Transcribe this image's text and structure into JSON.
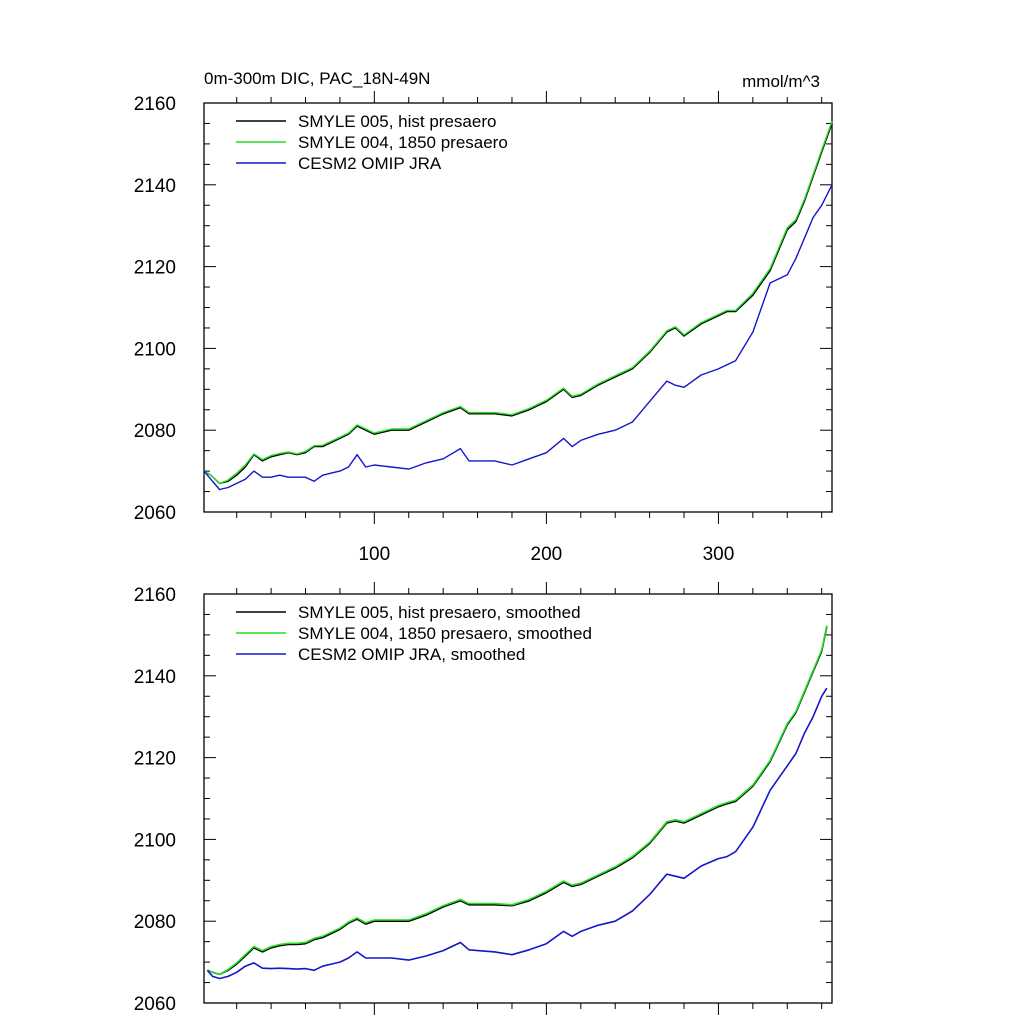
{
  "colors": {
    "black": "#000000",
    "green": "#22dd22",
    "blue": "#1515cc"
  },
  "chart_data": [
    {
      "type": "line",
      "title": "0m-300m DIC, PAC_18N-49N",
      "units": "mmol/m^3",
      "xlim": [
        1,
        366
      ],
      "ylim": [
        2060,
        2160
      ],
      "x_ticks": [
        100,
        200,
        300
      ],
      "y_ticks": [
        2060,
        2080,
        2100,
        2120,
        2140,
        2160
      ],
      "legend_position": "top-left",
      "series": [
        {
          "name": "SMYLE 005, hist presaero",
          "color": "#000000",
          "x": [
            1,
            5,
            10,
            15,
            20,
            25,
            30,
            35,
            40,
            45,
            50,
            55,
            60,
            65,
            70,
            75,
            80,
            85,
            90,
            95,
            100,
            110,
            120,
            130,
            140,
            150,
            155,
            160,
            170,
            180,
            190,
            200,
            210,
            215,
            220,
            230,
            240,
            250,
            260,
            270,
            275,
            280,
            290,
            300,
            305,
            310,
            320,
            330,
            340,
            345,
            350,
            355,
            360,
            366
          ],
          "values": [
            2070,
            2069,
            2067,
            2067.5,
            2069,
            2071,
            2074,
            2072.5,
            2073.5,
            2074,
            2074.5,
            2074,
            2074.5,
            2076,
            2076,
            2077,
            2078,
            2079,
            2081,
            2080,
            2079,
            2080,
            2080,
            2082,
            2084,
            2085.5,
            2084,
            2084,
            2084,
            2083.5,
            2085,
            2087,
            2090,
            2088,
            2088.5,
            2091,
            2093,
            2095,
            2099,
            2104,
            2105,
            2103,
            2106,
            2108,
            2109,
            2109,
            2113,
            2119,
            2129,
            2131,
            2136,
            2142,
            2148,
            2155
          ]
        },
        {
          "name": "SMYLE 004, 1850 presaero",
          "color": "#22dd22",
          "x": [
            1,
            5,
            10,
            15,
            20,
            25,
            30,
            35,
            40,
            45,
            50,
            55,
            60,
            65,
            70,
            75,
            80,
            85,
            90,
            95,
            100,
            110,
            120,
            130,
            140,
            150,
            155,
            160,
            170,
            180,
            190,
            200,
            210,
            215,
            220,
            230,
            240,
            250,
            260,
            270,
            275,
            280,
            290,
            300,
            305,
            310,
            320,
            330,
            340,
            345,
            350,
            355,
            360,
            366
          ],
          "values": [
            2070,
            2069,
            2067,
            2067.8,
            2069.5,
            2071.5,
            2074.2,
            2072.8,
            2073.8,
            2074.3,
            2074.7,
            2074.2,
            2074.8,
            2076.2,
            2076.3,
            2077.3,
            2078.3,
            2079.3,
            2081.3,
            2080.3,
            2079.3,
            2080.3,
            2080.3,
            2082.3,
            2084.3,
            2085.8,
            2084.3,
            2084.3,
            2084.3,
            2083.8,
            2085.3,
            2087.3,
            2090.3,
            2088.3,
            2088.8,
            2091.3,
            2093.3,
            2095.3,
            2099.3,
            2104.3,
            2105.3,
            2103.3,
            2106.3,
            2108.3,
            2109.3,
            2109.3,
            2113.5,
            2119.5,
            2129.5,
            2131.5,
            2136.5,
            2142.5,
            2148.5,
            2155.5
          ]
        },
        {
          "name": "CESM2 OMIP JRA",
          "color": "#1515cc",
          "x": [
            1,
            5,
            10,
            15,
            20,
            25,
            30,
            35,
            40,
            45,
            50,
            55,
            60,
            65,
            70,
            75,
            80,
            85,
            90,
            95,
            100,
            110,
            120,
            130,
            140,
            150,
            155,
            160,
            170,
            180,
            190,
            200,
            210,
            215,
            220,
            230,
            240,
            250,
            260,
            270,
            275,
            280,
            290,
            300,
            305,
            310,
            320,
            330,
            340,
            345,
            350,
            355,
            360,
            366
          ],
          "values": [
            2070,
            2068,
            2065.5,
            2066,
            2067,
            2068,
            2070,
            2068.5,
            2068.5,
            2069,
            2068.5,
            2068.5,
            2068.5,
            2067.5,
            2069,
            2069.5,
            2070,
            2071,
            2074,
            2071,
            2071.5,
            2071,
            2070.5,
            2072,
            2073,
            2075.5,
            2072.5,
            2072.5,
            2072.5,
            2071.5,
            2073,
            2074.5,
            2078,
            2076,
            2077.5,
            2079,
            2080,
            2082,
            2087,
            2092,
            2091,
            2090.5,
            2093.5,
            2095,
            2096,
            2097,
            2104,
            2116,
            2118,
            2122,
            2127,
            2132,
            2135,
            2140
          ]
        }
      ]
    },
    {
      "type": "line",
      "xlim": [
        1,
        366
      ],
      "ylim": [
        2060,
        2160
      ],
      "y_ticks": [
        2060,
        2080,
        2100,
        2120,
        2140,
        2160
      ],
      "legend_position": "top-left",
      "series": [
        {
          "name": "SMYLE 005, hist presaero, smoothed",
          "color": "#000000",
          "x": [
            3,
            6,
            10,
            15,
            20,
            25,
            30,
            35,
            40,
            45,
            50,
            55,
            60,
            65,
            70,
            75,
            80,
            85,
            90,
            95,
            100,
            110,
            120,
            130,
            140,
            150,
            155,
            160,
            170,
            180,
            190,
            200,
            210,
            215,
            220,
            230,
            240,
            250,
            260,
            270,
            275,
            280,
            290,
            300,
            305,
            310,
            320,
            330,
            340,
            345,
            350,
            355,
            360,
            363
          ],
          "values": [
            2068,
            2067.5,
            2067,
            2068,
            2069.5,
            2071.5,
            2073.5,
            2072.5,
            2073.5,
            2074,
            2074.3,
            2074.3,
            2074.5,
            2075.5,
            2076,
            2077,
            2078,
            2079.5,
            2080.5,
            2079.3,
            2080,
            2080,
            2080,
            2081.5,
            2083.5,
            2085,
            2084,
            2084,
            2084,
            2083.8,
            2085,
            2087,
            2089.5,
            2088.5,
            2089,
            2091,
            2093,
            2095.5,
            2099,
            2104,
            2104.5,
            2104,
            2106,
            2108,
            2108.7,
            2109.3,
            2113,
            2119,
            2128,
            2131,
            2136,
            2141,
            2146,
            2152
          ]
        },
        {
          "name": "SMYLE 004, 1850 presaero, smoothed",
          "color": "#22dd22",
          "x": [
            3,
            6,
            10,
            15,
            20,
            25,
            30,
            35,
            40,
            45,
            50,
            55,
            60,
            65,
            70,
            75,
            80,
            85,
            90,
            95,
            100,
            110,
            120,
            130,
            140,
            150,
            155,
            160,
            170,
            180,
            190,
            200,
            210,
            215,
            220,
            230,
            240,
            250,
            260,
            270,
            275,
            280,
            290,
            300,
            305,
            310,
            320,
            330,
            340,
            345,
            350,
            355,
            360,
            363
          ],
          "values": [
            2068,
            2067.5,
            2067,
            2068.2,
            2069.8,
            2071.8,
            2073.8,
            2072.8,
            2073.8,
            2074.3,
            2074.6,
            2074.6,
            2074.8,
            2075.8,
            2076.3,
            2077.3,
            2078.3,
            2079.8,
            2080.8,
            2079.6,
            2080.3,
            2080.3,
            2080.3,
            2081.8,
            2083.8,
            2085.3,
            2084.3,
            2084.3,
            2084.3,
            2084,
            2085.3,
            2087.3,
            2089.8,
            2088.8,
            2089.3,
            2091.3,
            2093.3,
            2095.8,
            2099.3,
            2104.3,
            2104.8,
            2104.3,
            2106.3,
            2108.3,
            2109,
            2109.6,
            2113.3,
            2119.3,
            2128.3,
            2131.3,
            2136.3,
            2141.3,
            2146.3,
            2152.3
          ]
        },
        {
          "name": "CESM2 OMIP JRA, smoothed",
          "color": "#1515cc",
          "x": [
            3,
            6,
            10,
            15,
            20,
            25,
            30,
            35,
            40,
            45,
            50,
            55,
            60,
            65,
            70,
            75,
            80,
            85,
            90,
            95,
            100,
            110,
            120,
            130,
            140,
            150,
            155,
            160,
            170,
            180,
            190,
            200,
            210,
            215,
            220,
            230,
            240,
            250,
            260,
            270,
            275,
            280,
            290,
            300,
            305,
            310,
            320,
            330,
            340,
            345,
            350,
            355,
            360,
            363
          ],
          "values": [
            2068,
            2066.5,
            2066,
            2066.5,
            2067.5,
            2069,
            2069.8,
            2068.5,
            2068.4,
            2068.5,
            2068.4,
            2068.3,
            2068.4,
            2068,
            2069,
            2069.5,
            2070,
            2071,
            2072.5,
            2071,
            2071,
            2071,
            2070.5,
            2071.5,
            2072.8,
            2074.8,
            2073,
            2072.8,
            2072.5,
            2071.8,
            2073,
            2074.5,
            2077.5,
            2076.3,
            2077.5,
            2079,
            2080,
            2082.5,
            2086.5,
            2091.5,
            2091,
            2090.5,
            2093.5,
            2095.3,
            2095.8,
            2097,
            2103,
            2112,
            2118,
            2121,
            2126,
            2130,
            2135,
            2137
          ]
        }
      ]
    }
  ]
}
